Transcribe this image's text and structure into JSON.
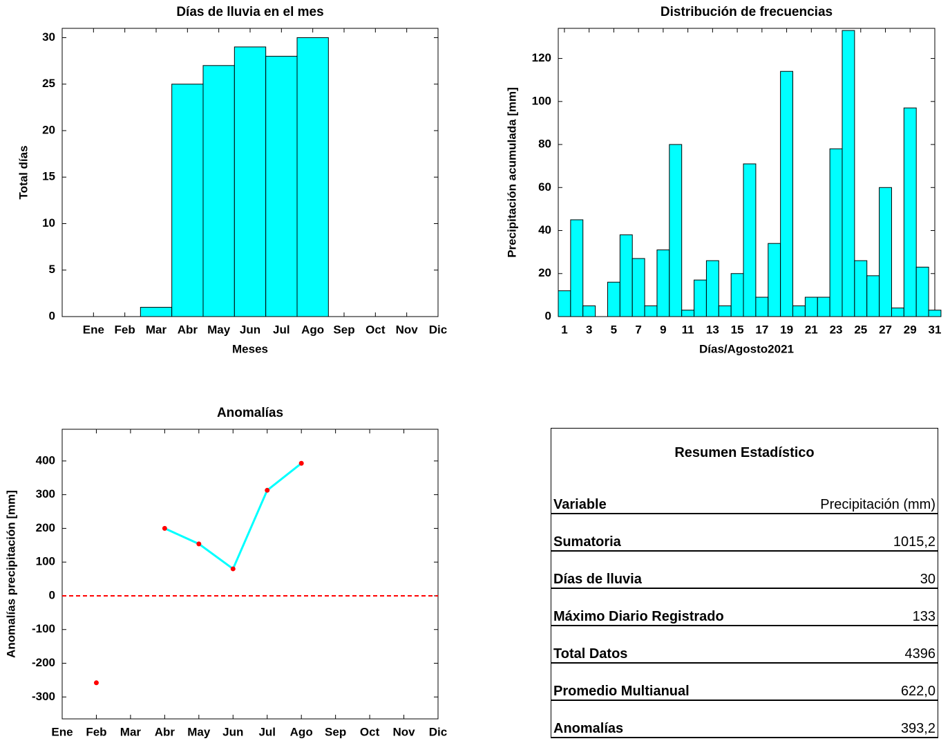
{
  "chart_data": [
    {
      "type": "bar",
      "title": "Días de lluvia en el mes",
      "x_label": "Meses",
      "y_label": "Total días",
      "categories": [
        "Ene",
        "Feb",
        "Mar",
        "Abr",
        "May",
        "Jun",
        "Jul",
        "Ago",
        "Sep",
        "Oct",
        "Nov",
        "Dic"
      ],
      "values": [
        0,
        0,
        1,
        25,
        27,
        29,
        28,
        30,
        0,
        0,
        0,
        0
      ],
      "color": "#00ffff",
      "ylim": [
        0,
        31
      ],
      "yticks": [
        0,
        5,
        10,
        15,
        20,
        25,
        30
      ],
      "grid": false
    },
    {
      "type": "bar",
      "title": "Distribución de frecuencias",
      "x_label": "Días/Agosto2021",
      "y_label": "Precipitación acumulada [mm]",
      "x": [
        1,
        2,
        3,
        4,
        5,
        6,
        7,
        8,
        9,
        10,
        11,
        12,
        13,
        14,
        15,
        16,
        17,
        18,
        19,
        20,
        21,
        22,
        23,
        24,
        25,
        26,
        27,
        28,
        29,
        30,
        31
      ],
      "values": [
        12,
        45,
        5,
        0,
        16,
        38,
        27,
        5,
        31,
        80,
        3,
        17,
        26,
        5,
        20,
        71,
        9,
        34,
        114,
        5,
        9,
        9,
        78,
        133,
        26,
        19,
        60,
        4,
        97,
        23,
        3
      ],
      "color": "#00ffff",
      "xlim": [
        0.5,
        31
      ],
      "xticks": [
        1,
        3,
        5,
        7,
        9,
        11,
        13,
        15,
        17,
        19,
        21,
        23,
        25,
        27,
        29,
        31
      ],
      "ylim": [
        0,
        134
      ],
      "yticks": [
        0,
        20,
        40,
        60,
        80,
        100,
        120
      ],
      "grid": false
    },
    {
      "type": "line",
      "title": "Anomalías",
      "y_label": "Anomalías precipitación [mm]",
      "categories": [
        "Ene",
        "Feb",
        "Mar",
        "Abr",
        "May",
        "Jun",
        "Jul",
        "Ago",
        "Sep",
        "Oct",
        "Nov",
        "Dic"
      ],
      "values": [
        null,
        -258,
        null,
        200,
        154,
        80,
        313,
        393,
        null,
        null,
        null,
        null
      ],
      "color": "#00ffff",
      "marker_color": "#ff0000",
      "zero_line": 0,
      "zero_line_color": "#ff0000",
      "ylim": [
        -365,
        494
      ],
      "yticks": [
        -300,
        -200,
        -100,
        0,
        100,
        200,
        300,
        400
      ],
      "grid": false
    }
  ],
  "table": {
    "title": "Resumen Estadístico",
    "header": [
      "Variable",
      "Precipitación (mm)"
    ],
    "rows": [
      [
        "Sumatoria",
        "1015,2"
      ],
      [
        "Días de lluvia",
        "30"
      ],
      [
        "Máximo Diario Registrado",
        "133"
      ],
      [
        "Total Datos",
        "4396"
      ],
      [
        "Promedio Multianual",
        "622,0"
      ],
      [
        "Anomalías",
        "393,2"
      ]
    ]
  }
}
